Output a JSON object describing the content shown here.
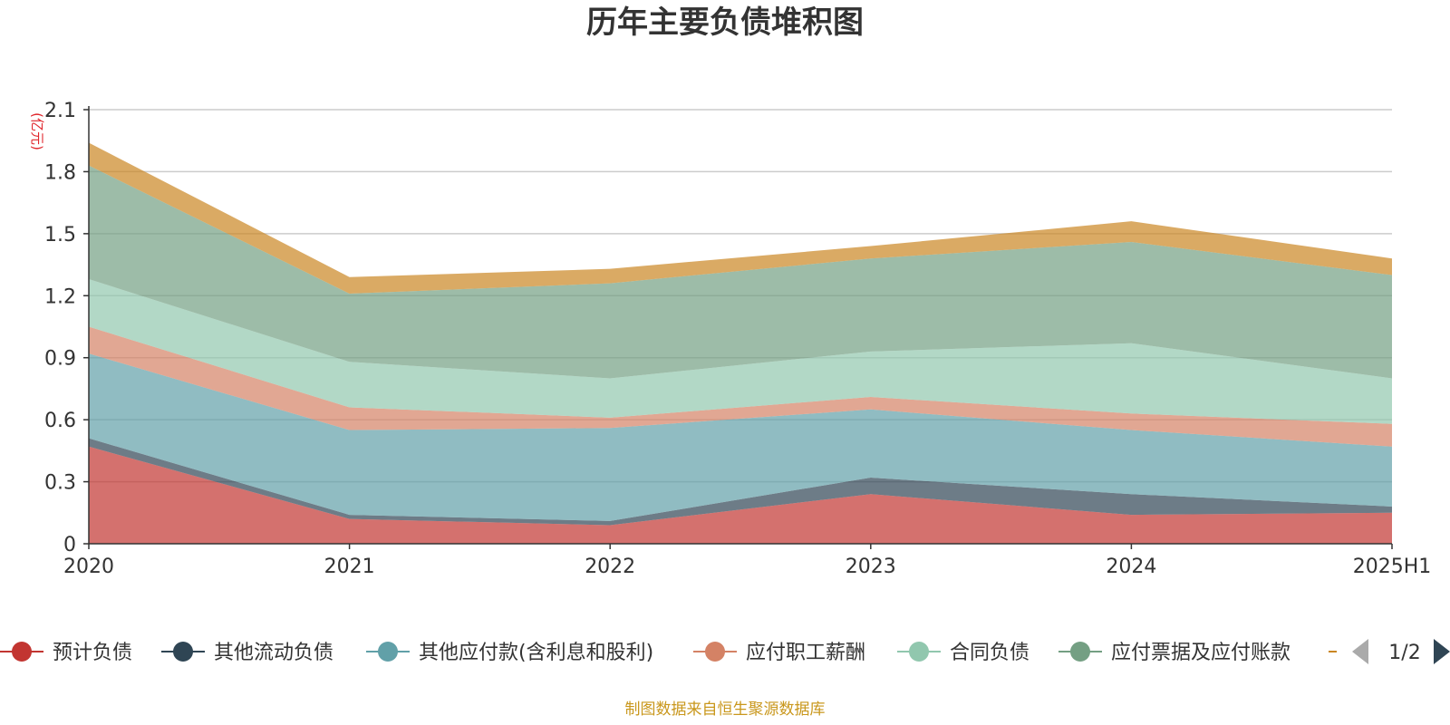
{
  "chart_data": {
    "type": "area",
    "stacked": true,
    "title": "历年主要负债堆积图",
    "y_unit": "(亿元)",
    "categories": [
      "2020",
      "2021",
      "2022",
      "2023",
      "2024",
      "2025H1"
    ],
    "ylim": [
      0,
      2.1
    ],
    "yticks": [
      "0",
      "0.3",
      "0.6",
      "0.9",
      "1.2",
      "1.5",
      "1.8",
      "2.1"
    ],
    "grid": true,
    "legend_position": "bottom",
    "series": [
      {
        "name": "预计负债",
        "color": "#c23531",
        "values": [
          0.47,
          0.12,
          0.09,
          0.24,
          0.14,
          0.15
        ]
      },
      {
        "name": "其他流动负债",
        "color": "#2f4554",
        "values": [
          0.04,
          0.02,
          0.02,
          0.08,
          0.1,
          0.03
        ]
      },
      {
        "name": "其他应付款(含利息和股利)",
        "color": "#61a0a8",
        "values": [
          0.41,
          0.41,
          0.45,
          0.33,
          0.31,
          0.29
        ]
      },
      {
        "name": "应付职工薪酬",
        "color": "#d48265",
        "values": [
          0.13,
          0.11,
          0.05,
          0.06,
          0.08,
          0.11
        ]
      },
      {
        "name": "合同负债",
        "color": "#91c7ae",
        "values": [
          0.23,
          0.22,
          0.19,
          0.22,
          0.34,
          0.22
        ]
      },
      {
        "name": "应付票据及应付账款",
        "color": "#749f83",
        "values": [
          0.55,
          0.33,
          0.46,
          0.45,
          0.49,
          0.5
        ]
      },
      {
        "name": "",
        "color": "#ca8622",
        "values": [
          0.11,
          0.08,
          0.07,
          0.06,
          0.1,
          0.08
        ]
      }
    ]
  },
  "legend_pager": {
    "text": "1/2"
  },
  "footer": {
    "source": "制图数据来自恒生聚源数据库"
  }
}
